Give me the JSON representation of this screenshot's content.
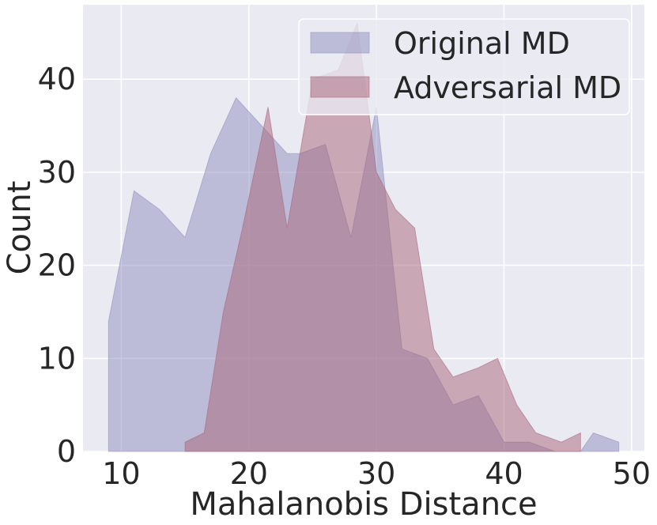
{
  "chart_data": {
    "type": "area",
    "title": "",
    "xlabel": "Mahalanobis Distance",
    "ylabel": "Count",
    "xlim": [
      7,
      51
    ],
    "ylim": [
      0,
      48
    ],
    "xticks": [
      10,
      20,
      30,
      40,
      50
    ],
    "yticks": [
      0,
      10,
      20,
      30,
      40
    ],
    "grid": true,
    "legend_position": "top-right",
    "colors": {
      "background": "#EAEAF2",
      "grid": "#FFFFFF",
      "original": "#8E8EC0",
      "adversarial": "#A86478"
    },
    "series": [
      {
        "name": "Original MD",
        "color": "#8E8EC0",
        "x": [
          9.0,
          9.0,
          11.0,
          13.0,
          15.0,
          17.0,
          19.0,
          21.0,
          23.0,
          24.0,
          26.0,
          28.0,
          30.0,
          32.0,
          34.0,
          36.0,
          38.0,
          40.0,
          42.0,
          44.0,
          46.0,
          47.0,
          49.0,
          49.0
        ],
        "y": [
          0,
          14,
          28,
          26,
          23,
          32,
          38,
          35,
          32,
          32,
          33,
          23,
          37,
          11,
          10,
          5,
          6,
          1,
          1,
          0,
          0,
          2,
          1,
          0
        ]
      },
      {
        "name": "Adversarial MD",
        "color": "#A86478",
        "x": [
          15.0,
          16.5,
          18.0,
          19.5,
          21.5,
          23.0,
          25.0,
          27.0,
          28.5,
          30.0,
          31.5,
          33.0,
          34.5,
          36.0,
          38.0,
          39.5,
          41.0,
          42.5,
          44.5,
          46.0,
          46.0
        ],
        "y": [
          1,
          2,
          15,
          24,
          37,
          24,
          40,
          41,
          46,
          30,
          26,
          24,
          11,
          8,
          9,
          10,
          5,
          2,
          1,
          2,
          0
        ]
      }
    ]
  }
}
